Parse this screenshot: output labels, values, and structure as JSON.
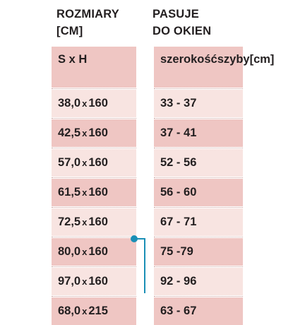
{
  "header": {
    "left": {
      "line1": "ROZMIARY",
      "line2": "[CM]"
    },
    "right": {
      "line1": "PASUJE",
      "line2": "DO OKIEN"
    }
  },
  "subheader": {
    "left": "S x H",
    "right": {
      "line1": "szerokość",
      "line2": "szyby[cm]"
    }
  },
  "rows": [
    {
      "w": "38,0",
      "x": "x",
      "h": "160",
      "fit": "33 - 37"
    },
    {
      "w": "42,5",
      "x": "x",
      "h": "160",
      "fit": "37 - 41"
    },
    {
      "w": "57,0",
      "x": "x",
      "h": "160",
      "fit": "52 - 56"
    },
    {
      "w": "61,5",
      "x": "x",
      "h": "160",
      "fit": "56 - 60"
    },
    {
      "w": "72,5",
      "x": "x",
      "h": "160",
      "fit": "67 - 71"
    },
    {
      "w": "80,0",
      "x": "x",
      "h": "160",
      "fit": "75 -79"
    },
    {
      "w": "97,0",
      "x": "x",
      "h": "160",
      "fit": "92 - 96"
    },
    {
      "w": "68,0",
      "x": "x",
      "h": "215",
      "fit": "63 - 67"
    }
  ],
  "colors": {
    "rowDark": "#efc6c3",
    "rowLight": "#f8e4e1",
    "accent": "#1a8fb6",
    "text": "#231f20"
  }
}
